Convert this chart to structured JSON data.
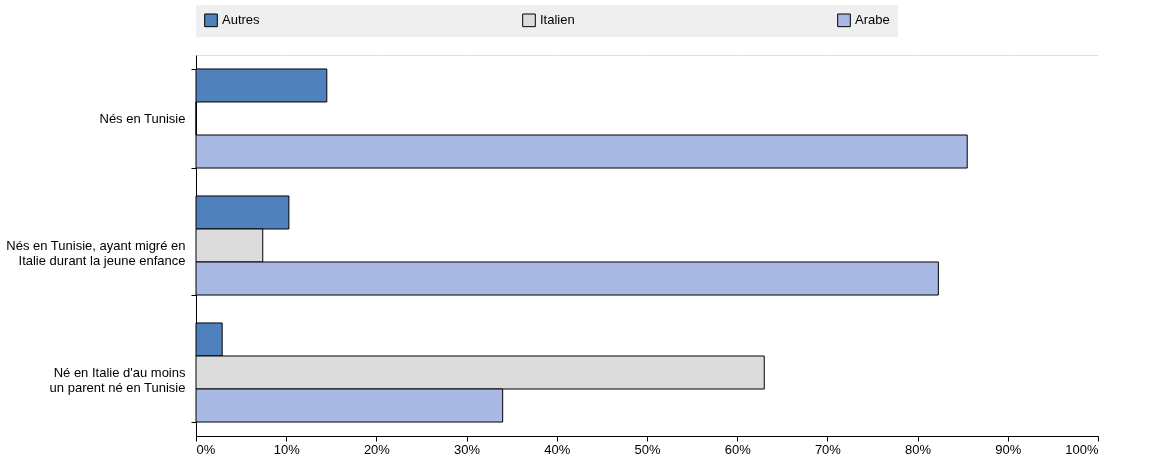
{
  "chart_data": {
    "type": "bar",
    "orientation": "horizontal",
    "categories": [
      "Nés en Tunisie",
      "Nés en Tunisie, ayant migré en Italie durant la jeune enfance",
      "Né en Italie d'au moins un parent né en Tunisie"
    ],
    "series": [
      {
        "name": "Autres",
        "color": "#4f81bd",
        "values": [
          14.5,
          10.3,
          2.9
        ]
      },
      {
        "name": "Italien",
        "color": "#dcdcdc",
        "values": [
          0,
          7.4,
          63.0
        ]
      },
      {
        "name": "Arabe",
        "color": "#a8b9e3",
        "values": [
          85.5,
          82.3,
          34.0
        ]
      }
    ],
    "xlim": [
      0,
      100
    ],
    "xticks": [
      {
        "value": 0,
        "label": "0%"
      },
      {
        "value": 10,
        "label": "10%"
      },
      {
        "value": 20,
        "label": "20%"
      },
      {
        "value": 30,
        "label": "30%"
      },
      {
        "value": 40,
        "label": "40%"
      },
      {
        "value": 50,
        "label": "50%"
      },
      {
        "value": 60,
        "label": "60%"
      },
      {
        "value": 70,
        "label": "70%"
      },
      {
        "value": 80,
        "label": "80%"
      },
      {
        "value": 90,
        "label": "90%"
      },
      {
        "value": 100,
        "label": "100%"
      }
    ],
    "grid": true,
    "legend": "top"
  }
}
